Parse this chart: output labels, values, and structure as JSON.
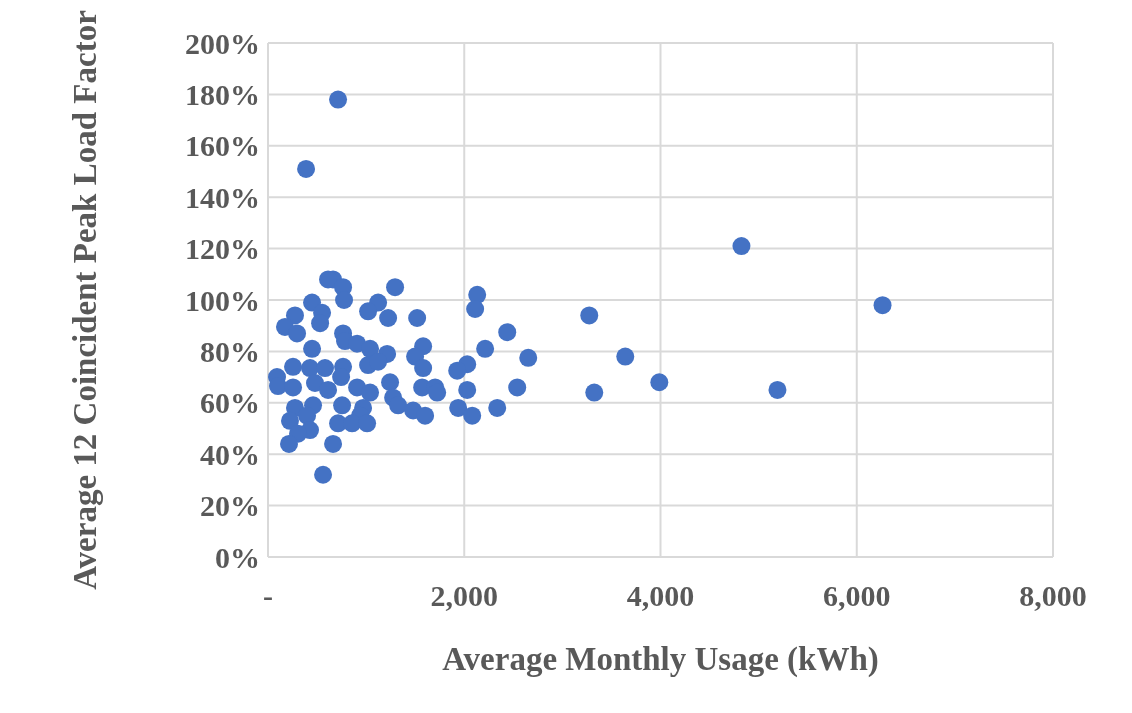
{
  "chart_data": {
    "type": "scatter",
    "xlabel": "Average Monthly Usage (kWh)",
    "ylabel": "Average 12 Coincident Peak Load Factor",
    "color": "#4472c4",
    "marker": "circle",
    "grid": true,
    "x": [
      714,
      388,
      4825,
      6263,
      2132,
      2111,
      1295,
      663,
      612,
      765,
      775,
      1122,
      449,
      551,
      531,
      275,
      173,
      296,
      449,
      765,
      785,
      908,
      1040,
      1020,
      1224,
      1520,
      1214,
      1581,
      1499,
      1581,
      2438,
      2213,
      2652,
      2030,
      1928,
      92,
      102,
      255,
      255,
      428,
      581,
      765,
      745,
      479,
      612,
      908,
      1020,
      1122,
      1040,
      1244,
      1275,
      1326,
      1571,
      1703,
      1724,
      1938,
      2030,
      2081,
      2336,
      2540,
      1479,
      1601,
      755,
      969,
      938,
      714,
      857,
      1010,
      459,
      275,
      224,
      398,
      428,
      306,
      214,
      663,
      561,
      3274,
      3641,
      3325,
      3988,
      5192
    ],
    "values": [
      178,
      151,
      121,
      98,
      102,
      96.5,
      105,
      108,
      108,
      105,
      100,
      99,
      99,
      95,
      91,
      94,
      89.5,
      87,
      81,
      87,
      84,
      83,
      81,
      95.6,
      93,
      93,
      79,
      82,
      78,
      73.5,
      87.5,
      81,
      77.5,
      75,
      72.5,
      70,
      66.5,
      66,
      74,
      73.5,
      73.5,
      74,
      70,
      67.7,
      65,
      66,
      74.7,
      76,
      64,
      68,
      62,
      59,
      66,
      66,
      64,
      58,
      65,
      55,
      58,
      66,
      57,
      55,
      59,
      58,
      55,
      52,
      52,
      52,
      59,
      58,
      53,
      55,
      49.4,
      48,
      44,
      44,
      32,
      94,
      78,
      64,
      68,
      65
    ],
    "xlim": [
      0,
      8000
    ],
    "xticks": [
      {
        "value": 0,
        "label": "-"
      },
      {
        "value": 2000,
        "label": "2,000"
      },
      {
        "value": 4000,
        "label": "4,000"
      },
      {
        "value": 6000,
        "label": "6,000"
      },
      {
        "value": 8000,
        "label": "8,000"
      }
    ],
    "ylim": [
      0,
      200
    ],
    "yticks": [
      {
        "value": 0,
        "label": "0%"
      },
      {
        "value": 20,
        "label": "20%"
      },
      {
        "value": 40,
        "label": "40%"
      },
      {
        "value": 60,
        "label": "60%"
      },
      {
        "value": 80,
        "label": "80%"
      },
      {
        "value": 100,
        "label": "100%"
      },
      {
        "value": 120,
        "label": "120%"
      },
      {
        "value": 140,
        "label": "140%"
      },
      {
        "value": 160,
        "label": "160%"
      },
      {
        "value": 180,
        "label": "180%"
      },
      {
        "value": 200,
        "label": "200%"
      }
    ]
  }
}
